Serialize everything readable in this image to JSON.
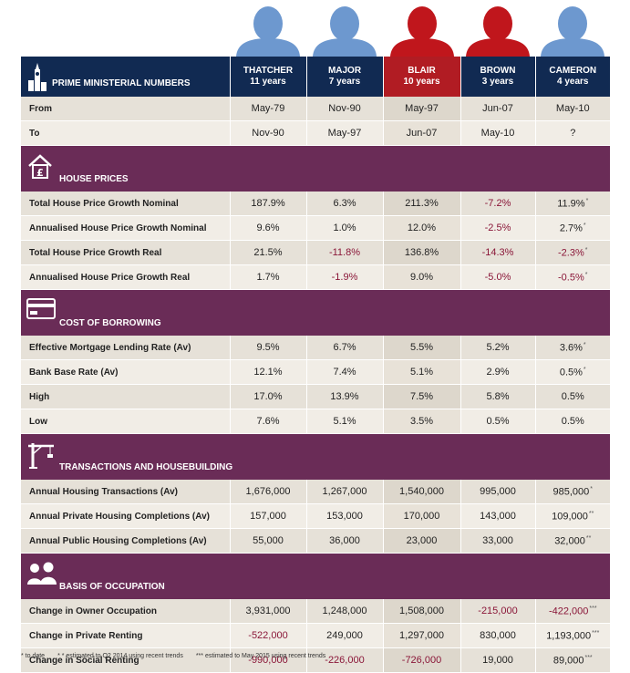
{
  "colors": {
    "header": "#112a52",
    "section": "#6a2c57",
    "tory_blue": "#6d98cf",
    "labour_red": "#c0161c"
  },
  "header": {
    "title": "PRIME MINISTERIAL NUMBERS",
    "pms": [
      {
        "name": "THATCHER",
        "years": "11 years",
        "party": "tory"
      },
      {
        "name": "MAJOR",
        "years": "7 years",
        "party": "tory"
      },
      {
        "name": "BLAIR",
        "years": "10 years",
        "party": "labour"
      },
      {
        "name": "BROWN",
        "years": "3 years",
        "party": "labour"
      },
      {
        "name": "CAMERON",
        "years": "4 years",
        "party": "tory"
      }
    ]
  },
  "dates": [
    {
      "label": "From",
      "values": [
        "May-79",
        "Nov-90",
        "May-97",
        "Jun-07",
        "May-10"
      ]
    },
    {
      "label": "To",
      "values": [
        "Nov-90",
        "May-97",
        "Jun-07",
        "May-10",
        "?"
      ]
    }
  ],
  "sections": [
    {
      "title": "HOUSE PRICES",
      "icon": "house-pound-icon",
      "rows": [
        {
          "label": "Total House Price Growth Nominal",
          "values": [
            "187.9%",
            "6.3%",
            "211.3%",
            "-7.2%",
            "11.9%"
          ],
          "notes": [
            "",
            "",
            "",
            "",
            "*"
          ]
        },
        {
          "label": "Annualised House Price Growth Nominal",
          "values": [
            "9.6%",
            "1.0%",
            "12.0%",
            "-2.5%",
            "2.7%"
          ],
          "notes": [
            "",
            "",
            "",
            "",
            "*"
          ]
        },
        {
          "label": "Total House Price Growth Real",
          "values": [
            "21.5%",
            "-11.8%",
            "136.8%",
            "-14.3%",
            "-2.3%"
          ],
          "notes": [
            "",
            "",
            "",
            "",
            "*"
          ]
        },
        {
          "label": "Annualised House Price Growth Real",
          "values": [
            "1.7%",
            "-1.9%",
            "9.0%",
            "-5.0%",
            "-0.5%"
          ],
          "notes": [
            "",
            "",
            "",
            "",
            "*"
          ]
        }
      ]
    },
    {
      "title": "COST OF BORROWING",
      "icon": "credit-card-icon",
      "rows": [
        {
          "label": "Effective Mortgage Lending Rate (Av)",
          "values": [
            "9.5%",
            "6.7%",
            "5.5%",
            "5.2%",
            "3.6%"
          ],
          "notes": [
            "",
            "",
            "",
            "",
            "*"
          ]
        },
        {
          "label": "Bank Base Rate (Av)",
          "values": [
            "12.1%",
            "7.4%",
            "5.1%",
            "2.9%",
            "0.5%"
          ],
          "notes": [
            "",
            "",
            "",
            "",
            "*"
          ]
        },
        {
          "label": "High",
          "values": [
            "17.0%",
            "13.9%",
            "7.5%",
            "5.8%",
            "0.5%"
          ],
          "notes": [
            "",
            "",
            "",
            "",
            ""
          ]
        },
        {
          "label": "Low",
          "values": [
            "7.6%",
            "5.1%",
            "3.5%",
            "0.5%",
            "0.5%"
          ],
          "notes": [
            "",
            "",
            "",
            "",
            ""
          ]
        }
      ]
    },
    {
      "title": "TRANSACTIONS AND HOUSEBUILDING",
      "icon": "crane-icon",
      "rows": [
        {
          "label": "Annual Housing Transactions (Av)",
          "values": [
            "1,676,000",
            "1,267,000",
            "1,540,000",
            "995,000",
            "985,000"
          ],
          "notes": [
            "",
            "",
            "",
            "",
            "*"
          ]
        },
        {
          "label": "Annual Private Housing Completions (Av)",
          "values": [
            "157,000",
            "153,000",
            "170,000",
            "143,000",
            "109,000"
          ],
          "notes": [
            "",
            "",
            "",
            "",
            "**"
          ]
        },
        {
          "label": "Annual Public Housing Completions (Av)",
          "values": [
            "55,000",
            "36,000",
            "23,000",
            "33,000",
            "32,000"
          ],
          "notes": [
            "",
            "",
            "",
            "",
            "**"
          ]
        }
      ]
    },
    {
      "title": "BASIS OF OCCUPATION",
      "icon": "people-icon",
      "rows": [
        {
          "label": "Change in Owner Occupation",
          "values": [
            "3,931,000",
            "1,248,000",
            "1,508,000",
            "-215,000",
            "-422,000"
          ],
          "notes": [
            "",
            "",
            "",
            "",
            "***"
          ]
        },
        {
          "label": "Change in Private Renting",
          "values": [
            "-522,000",
            "249,000",
            "1,297,000",
            "830,000",
            "1,193,000"
          ],
          "notes": [
            "",
            "",
            "",
            "",
            "***"
          ]
        },
        {
          "label": "Change in Social Renting",
          "values": [
            "-990,000",
            "-226,000",
            "-726,000",
            "19,000",
            "89,000"
          ],
          "notes": [
            "",
            "",
            "",
            "",
            "***"
          ]
        }
      ]
    }
  ],
  "footnotes": [
    "* to date",
    "* * estimated to Q2 2014 using recent trends",
    "*** estimated to May 2015 using recent trends"
  ]
}
